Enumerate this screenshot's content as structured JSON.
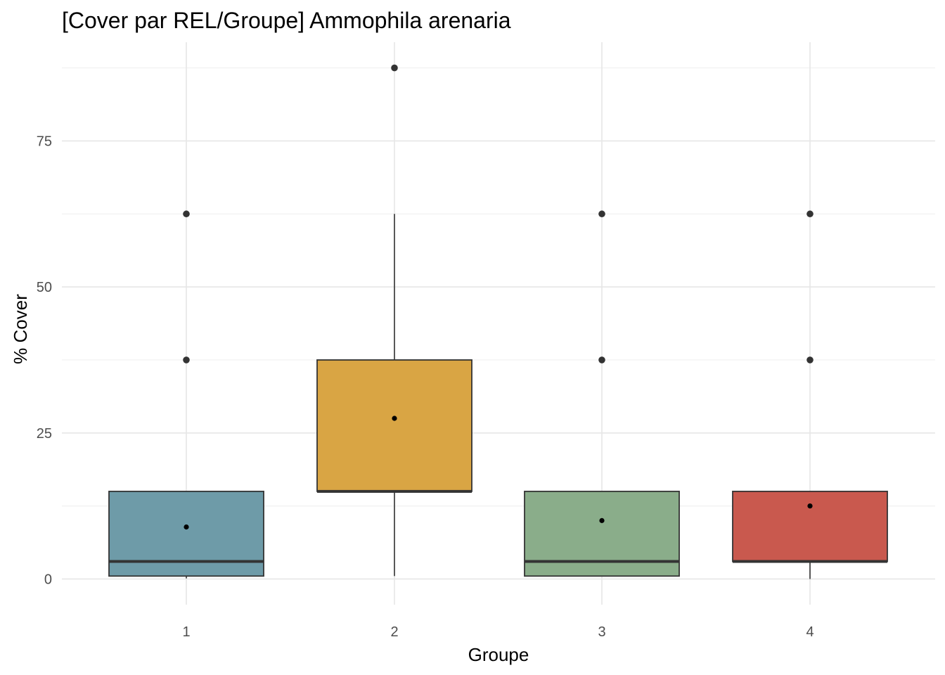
{
  "chart_data": {
    "type": "boxplot",
    "title": "[Cover par REL/Groupe] Ammophila arenaria",
    "xlabel": "Groupe",
    "ylabel": "% Cover",
    "categories": [
      "1",
      "2",
      "3",
      "4"
    ],
    "yticks": [
      0,
      25,
      50,
      75
    ],
    "ylim": [
      -4.4,
      91.9
    ],
    "grid": true,
    "legend": "none",
    "boxes": [
      {
        "group": "1",
        "lower_whisker": 0.1,
        "q1": 0.5,
        "median": 3,
        "q3": 15,
        "upper_whisker": 15,
        "mean": 8.9,
        "outliers": [
          37.5,
          62.5
        ],
        "color": "#6E9BA8"
      },
      {
        "group": "2",
        "lower_whisker": 0.5,
        "q1": 15,
        "median": 15,
        "q3": 37.5,
        "upper_whisker": 62.5,
        "mean": 27.5,
        "outliers": [
          87.5
        ],
        "color": "#D9A544"
      },
      {
        "group": "3",
        "lower_whisker": 0.5,
        "q1": 0.5,
        "median": 3,
        "q3": 15,
        "upper_whisker": 15,
        "mean": 10,
        "outliers": [
          37.5,
          62.5
        ],
        "color": "#8AAD8A"
      },
      {
        "group": "4",
        "lower_whisker": 0,
        "q1": 3,
        "median": 3,
        "q3": 15,
        "upper_whisker": 15,
        "mean": 12.5,
        "outliers": [
          37.5,
          62.5
        ],
        "color": "#C9594E"
      }
    ]
  }
}
